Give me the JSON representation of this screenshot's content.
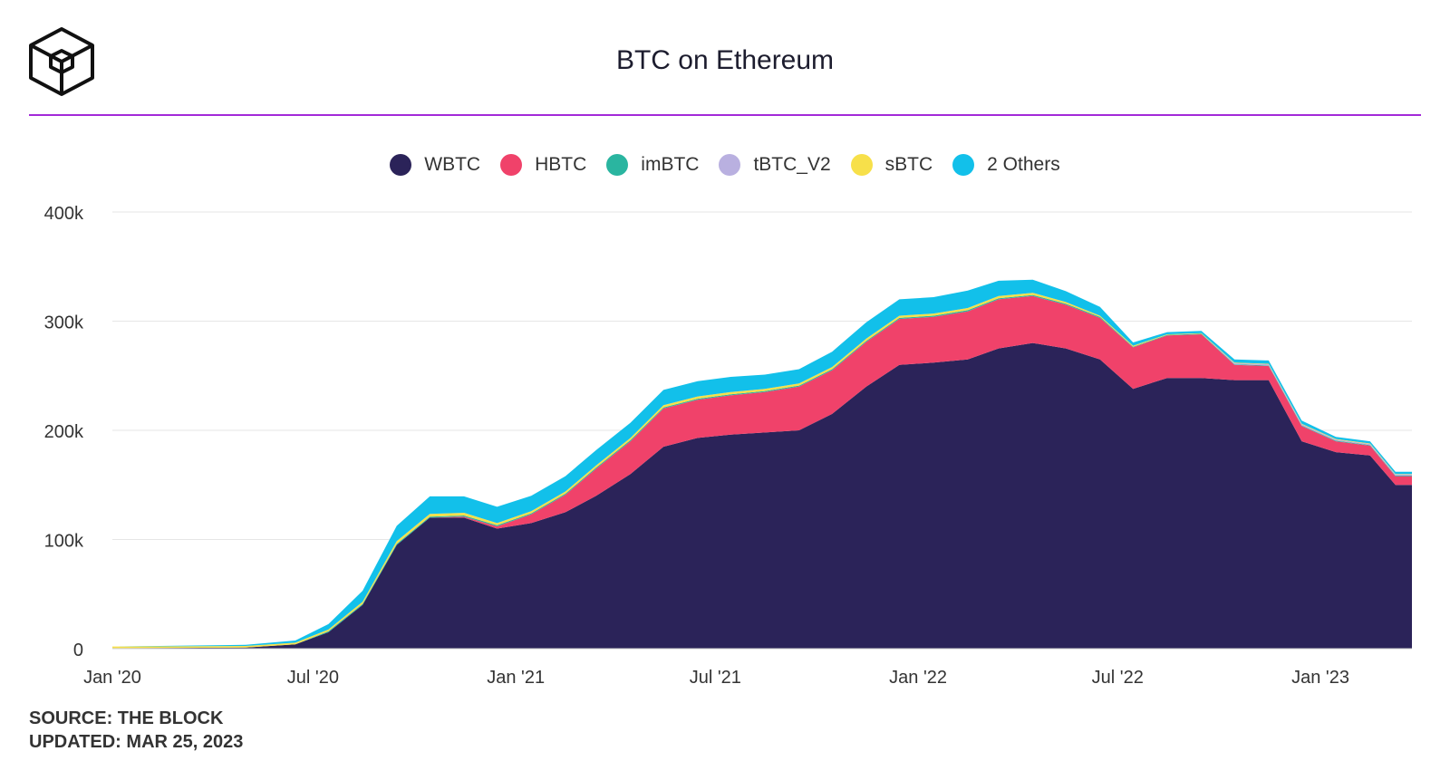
{
  "chart_data": {
    "type": "area",
    "stacked": true,
    "title": "BTC on Ethereum",
    "xlabel": "",
    "ylabel": "",
    "ylim": [
      0,
      400000
    ],
    "yticks": [
      0,
      100000,
      200000,
      300000,
      400000
    ],
    "ytick_labels": [
      "0",
      "100k",
      "200k",
      "300k",
      "400k"
    ],
    "x_range": [
      "2020-01-01",
      "2023-03-25"
    ],
    "xtick_labels": [
      "Jan '20",
      "Jul '20",
      "Jan '21",
      "Jul '21",
      "Jan '22",
      "Jul '22",
      "Jan '23"
    ],
    "xticks": [
      "2020-01-01",
      "2020-07-01",
      "2021-01-01",
      "2021-07-01",
      "2022-01-01",
      "2022-07-01",
      "2023-01-01"
    ],
    "grid": "horizontal",
    "legend_position": "top-center",
    "x": [
      "2020-01-01",
      "2020-05-01",
      "2020-06-15",
      "2020-07-15",
      "2020-08-15",
      "2020-09-15",
      "2020-10-15",
      "2020-11-15",
      "2020-12-15",
      "2021-01-15",
      "2021-02-15",
      "2021-03-15",
      "2021-04-15",
      "2021-05-15",
      "2021-06-15",
      "2021-07-15",
      "2021-08-15",
      "2021-09-15",
      "2021-10-15",
      "2021-11-15",
      "2021-12-15",
      "2022-01-15",
      "2022-02-15",
      "2022-03-15",
      "2022-04-15",
      "2022-05-15",
      "2022-06-15",
      "2022-07-15",
      "2022-08-15",
      "2022-09-15",
      "2022-10-15",
      "2022-11-15",
      "2022-12-15",
      "2023-01-15",
      "2023-02-15",
      "2023-03-10",
      "2023-03-25"
    ],
    "series": [
      {
        "name": "WBTC",
        "color": "#2b2359",
        "values": [
          500,
          1000,
          4000,
          15000,
          40000,
          95000,
          120000,
          120000,
          110000,
          115000,
          125000,
          140000,
          160000,
          185000,
          193000,
          196000,
          198000,
          200000,
          215000,
          240000,
          260000,
          262000,
          265000,
          275000,
          280000,
          275000,
          265000,
          238000,
          248000,
          248000,
          246000,
          246000,
          190000,
          180000,
          177000,
          150000,
          150000
        ]
      },
      {
        "name": "HBTC",
        "color": "#f0426a",
        "values": [
          0,
          0,
          0,
          0,
          0,
          0,
          0,
          1000,
          2000,
          8000,
          16000,
          25000,
          30000,
          35000,
          35000,
          36000,
          37000,
          40000,
          40000,
          41000,
          42000,
          42000,
          44000,
          45000,
          43000,
          40000,
          38000,
          38000,
          39000,
          40000,
          14000,
          13000,
          14000,
          10000,
          9000,
          8000,
          8000
        ]
      },
      {
        "name": "imBTC",
        "color": "#2ab5a0",
        "values": [
          0,
          0,
          0,
          1000,
          1000,
          1000,
          1000,
          1000,
          1000,
          1000,
          1000,
          1000,
          1000,
          1000,
          1000,
          1000,
          1000,
          1000,
          1000,
          1000,
          1000,
          1000,
          1000,
          1000,
          1000,
          1000,
          1000,
          500,
          500,
          500,
          500,
          500,
          500,
          500,
          500,
          500,
          500
        ]
      },
      {
        "name": "tBTC_V2",
        "color": "#b9b0e0",
        "values": [
          0,
          0,
          0,
          0,
          0,
          0,
          0,
          0,
          0,
          0,
          0,
          0,
          0,
          0,
          0,
          0,
          0,
          0,
          0,
          0,
          0,
          0,
          0,
          0,
          0,
          0,
          0,
          0,
          0,
          0,
          1000,
          1000,
          1000,
          1000,
          1000,
          1000,
          1000
        ]
      },
      {
        "name": "sBTC",
        "color": "#f7e04a",
        "values": [
          1500,
          1500,
          1500,
          1500,
          2000,
          2500,
          2500,
          2500,
          2000,
          2000,
          2000,
          2000,
          2000,
          2000,
          2000,
          2000,
          2000,
          2000,
          2000,
          2000,
          2000,
          2000,
          2000,
          2000,
          2000,
          1500,
          1000,
          1000,
          500,
          500,
          500,
          500,
          500,
          500,
          500,
          500,
          500
        ]
      },
      {
        "name": "2 Others",
        "color": "#12c0ea",
        "values": [
          0,
          1000,
          2000,
          5000,
          10000,
          14000,
          16000,
          15000,
          15000,
          14000,
          14000,
          14000,
          14000,
          14000,
          14000,
          14000,
          13000,
          13000,
          14000,
          15000,
          15000,
          15000,
          16000,
          14000,
          12000,
          10000,
          8000,
          3000,
          2000,
          2000,
          3000,
          3000,
          3000,
          2000,
          2000,
          2000,
          2000
        ]
      }
    ],
    "source_lines": [
      "SOURCE: THE BLOCK",
      "UPDATED: MAR 25, 2023"
    ]
  },
  "brand": {
    "logo_icon": "the-block-cube-icon",
    "accent_color": "#a32ad8"
  }
}
